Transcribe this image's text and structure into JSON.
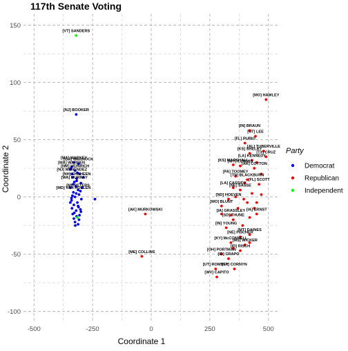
{
  "chart_data": {
    "type": "scatter",
    "title": "117th Senate Voting",
    "xlabel": "Coordinate 1",
    "ylabel": "Coordinate 2",
    "xlim": [
      -545,
      545
    ],
    "ylim": [
      -110,
      160
    ],
    "x_ticks": [
      -500,
      -250,
      0,
      250,
      500
    ],
    "x_tick_labels": [
      "-500",
      "-250",
      "0",
      "250",
      "500"
    ],
    "y_ticks": [
      -100,
      -50,
      0,
      50,
      100,
      150
    ],
    "y_tick_labels": [
      "-100",
      "-50",
      "0",
      "50",
      "100",
      "150"
    ],
    "grid": true,
    "legend": {
      "title": "Party",
      "position": "right",
      "entries": [
        {
          "name": "Democrat",
          "color": "#0000ff"
        },
        {
          "name": "Republican",
          "color": "#ff0000"
        },
        {
          "name": "Independent",
          "color": "#00ff00"
        }
      ]
    },
    "series": [
      {
        "name": "Democrat",
        "color": "#0000ff",
        "points": [
          {
            "x": -320,
            "y": 72,
            "label": "[NJ] BOOKER"
          },
          {
            "x": -330,
            "y": 30,
            "label": "[MA] MARKEY"
          },
          {
            "x": -310,
            "y": 29,
            "label": "[GA] WARNOCK"
          },
          {
            "x": -340,
            "y": 26,
            "label": "[MA] WARREN"
          },
          {
            "x": -325,
            "y": 23,
            "label": "[NM] HEINRICH"
          },
          {
            "x": -338,
            "y": 20,
            "label": "[NJ] MENENDEZ"
          },
          {
            "x": -318,
            "y": 16,
            "label": "[NH] SHAHEEN"
          },
          {
            "x": -328,
            "y": 13,
            "label": "[WA] MURRAY"
          },
          {
            "x": -312,
            "y": 6,
            "label": "[MI] PETERS"
          },
          {
            "x": -332,
            "y": 4,
            "label": "[MD] VAN HOLLEN"
          },
          {
            "x": -345,
            "y": 24
          },
          {
            "x": -305,
            "y": 20
          },
          {
            "x": -335,
            "y": 17
          },
          {
            "x": -300,
            "y": 12
          },
          {
            "x": -322,
            "y": 9
          },
          {
            "x": -345,
            "y": 8
          },
          {
            "x": -308,
            "y": 2
          },
          {
            "x": -325,
            "y": 0
          },
          {
            "x": -298,
            "y": -2
          },
          {
            "x": -340,
            "y": -3
          },
          {
            "x": -315,
            "y": -5
          },
          {
            "x": -330,
            "y": -7
          },
          {
            "x": -310,
            "y": -9
          },
          {
            "x": -338,
            "y": -10
          },
          {
            "x": -320,
            "y": -12
          },
          {
            "x": -300,
            "y": -13
          },
          {
            "x": -335,
            "y": -15
          },
          {
            "x": -318,
            "y": -17
          },
          {
            "x": -330,
            "y": -19
          },
          {
            "x": -308,
            "y": -20
          },
          {
            "x": -325,
            "y": -22
          },
          {
            "x": -240,
            "y": -2
          },
          {
            "x": -290,
            "y": 17
          },
          {
            "x": -312,
            "y": -24
          },
          {
            "x": -340,
            "y": -1
          },
          {
            "x": -302,
            "y": 5
          },
          {
            "x": -333,
            "y": 11
          },
          {
            "x": -315,
            "y": 21
          },
          {
            "x": -328,
            "y": -14
          },
          {
            "x": -306,
            "y": -16
          },
          {
            "x": -345,
            "y": -5
          },
          {
            "x": -295,
            "y": 8
          },
          {
            "x": -320,
            "y": 3
          },
          {
            "x": -312,
            "y": -8
          },
          {
            "x": -336,
            "y": 1
          },
          {
            "x": -324,
            "y": -25
          },
          {
            "x": -302,
            "y": -11
          },
          {
            "x": -318,
            "y": 14
          }
        ]
      },
      {
        "name": "Republican",
        "color": "#ff0000",
        "points": [
          {
            "x": 490,
            "y": 85,
            "label": "[MO] HAWLEY"
          },
          {
            "x": 420,
            "y": 58,
            "label": "[IN] BRAUN"
          },
          {
            "x": 445,
            "y": 53,
            "label": "[UT] LEE"
          },
          {
            "x": 400,
            "y": 47,
            "label": "[FL] RUBIO"
          },
          {
            "x": 480,
            "y": 40,
            "label": "[AL] TUBERVILLE"
          },
          {
            "x": 420,
            "y": 38,
            "label": "[KS] SHELBY"
          },
          {
            "x": 490,
            "y": 35,
            "label": "[TX] CRUZ"
          },
          {
            "x": 350,
            "y": 28,
            "label": "[KS] MARSHALL"
          },
          {
            "x": 430,
            "y": 32,
            "label": "[LA] KENNEDY"
          },
          {
            "x": 440,
            "y": 25,
            "label": "[AR] COTTON"
          },
          {
            "x": 380,
            "y": 27,
            "label": "[WY] LUMMIS"
          },
          {
            "x": 360,
            "y": 18,
            "label": "[PA] TOOMEY"
          },
          {
            "x": 410,
            "y": 15,
            "label": "[TN] BLACKBURN"
          },
          {
            "x": 350,
            "y": 8,
            "label": "[LA] CASSIDY"
          },
          {
            "x": 380,
            "y": 6,
            "label": "[NE] SASSE"
          },
          {
            "x": 460,
            "y": 11,
            "label": "[FL] SCOTT"
          },
          {
            "x": 330,
            "y": -2,
            "label": "[ND] HOEVEN"
          },
          {
            "x": 300,
            "y": -8,
            "label": "[MO] BLUNT"
          },
          {
            "x": 450,
            "y": -15,
            "label": "[IA] ERNST"
          },
          {
            "x": 340,
            "y": -16,
            "label": "[IA] GRASSLEY"
          },
          {
            "x": -25,
            "y": -15,
            "label": "[AK] MURKOWSKI"
          },
          {
            "x": 350,
            "y": -20,
            "label": "[SD] THUNE"
          },
          {
            "x": 320,
            "y": -27,
            "label": "[IN] YOUNG"
          },
          {
            "x": 380,
            "y": -35,
            "label": "[NE] FISCHER"
          },
          {
            "x": 420,
            "y": -33,
            "label": "[MT] DAINES"
          },
          {
            "x": 340,
            "y": -40,
            "label": "[KY] McCONNELL"
          },
          {
            "x": 400,
            "y": -42,
            "label": "[MS] WICKER"
          },
          {
            "x": 300,
            "y": -50,
            "label": "[OH] PORTMAN"
          },
          {
            "x": 380,
            "y": -47,
            "label": "[ID] RISCH"
          },
          {
            "x": 330,
            "y": -54,
            "label": "[ID] CRAPO"
          },
          {
            "x": -40,
            "y": -52,
            "label": "[ME] COLLINS"
          },
          {
            "x": 275,
            "y": -63,
            "label": "[UT] ROMNEY"
          },
          {
            "x": 355,
            "y": -63,
            "label": "[TX] CORNYN"
          },
          {
            "x": 280,
            "y": -70,
            "label": "[WV] CAPITO"
          },
          {
            "x": 410,
            "y": -5
          },
          {
            "x": 440,
            "y": -10
          },
          {
            "x": 370,
            "y": -10
          },
          {
            "x": 395,
            "y": -2
          },
          {
            "x": 430,
            "y": 3
          },
          {
            "x": 470,
            "y": 20
          },
          {
            "x": 360,
            "y": 0
          },
          {
            "x": 390,
            "y": -25
          },
          {
            "x": 300,
            "y": -15
          },
          {
            "x": 350,
            "y": -45
          },
          {
            "x": 420,
            "y": -18
          },
          {
            "x": 400,
            "y": 12
          },
          {
            "x": 450,
            "y": 30
          },
          {
            "x": 470,
            "y": 2
          },
          {
            "x": 420,
            "y": -40
          },
          {
            "x": 450,
            "y": -5
          }
        ]
      },
      {
        "name": "Independent",
        "color": "#00ff00",
        "points": [
          {
            "x": -320,
            "y": 141,
            "label": "[VT] SANDERS"
          },
          {
            "x": -315,
            "y": -18
          }
        ]
      }
    ]
  }
}
